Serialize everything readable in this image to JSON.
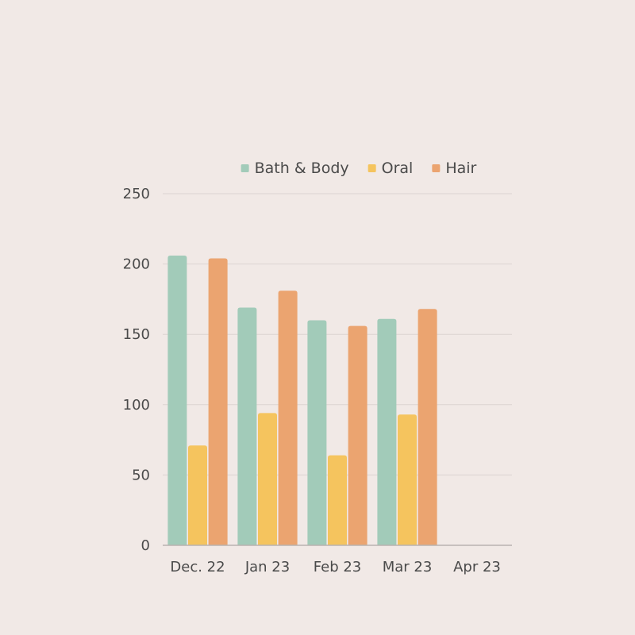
{
  "chart_data": {
    "type": "bar",
    "title": "",
    "xlabel": "",
    "ylabel": "",
    "categories": [
      "Dec. 22",
      "Jan 23",
      "Feb 23",
      "Mar 23",
      "Apr 23"
    ],
    "series": [
      {
        "name": "Bath & Body",
        "color": "#a2cbb9",
        "values": [
          206,
          169,
          160,
          161,
          null
        ]
      },
      {
        "name": "Oral",
        "color": "#f5c45e",
        "values": [
          71,
          94,
          64,
          93,
          null
        ]
      },
      {
        "name": "Hair",
        "color": "#eba470",
        "values": [
          204,
          181,
          156,
          168,
          null
        ]
      }
    ],
    "ylim": [
      0,
      250
    ],
    "yticks": [
      0,
      50,
      100,
      150,
      200,
      250
    ],
    "grid": true,
    "legend": "top"
  }
}
